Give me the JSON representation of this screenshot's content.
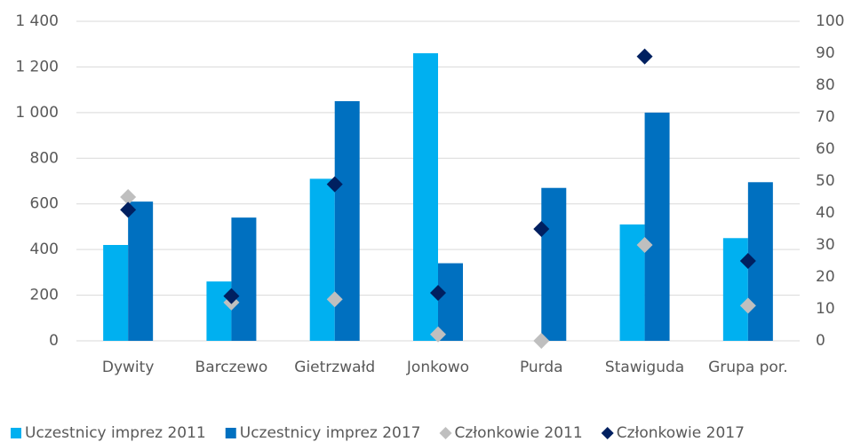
{
  "chart_data": {
    "type": "bar",
    "categories": [
      "Dywity",
      "Barczewo",
      "Gietrzwałd",
      "Jonkowo",
      "Purda",
      "Stawiguda",
      "Grupa por."
    ],
    "series": [
      {
        "name": "Uczestnicy imprez 2011",
        "color": "#00b0f0",
        "type": "bar",
        "values": [
          420,
          260,
          710,
          1260,
          0,
          510,
          450
        ]
      },
      {
        "name": "Uczestnicy imprez 2017",
        "color": "#0070c0",
        "type": "bar",
        "values": [
          610,
          540,
          1050,
          340,
          670,
          1000,
          695
        ]
      },
      {
        "name": "Członkowie 2011",
        "color": "#bfbfbf",
        "type": "scatter",
        "axis": "y2",
        "values": [
          45,
          12,
          13,
          2,
          0,
          30,
          11
        ]
      },
      {
        "name": "Członkowie 2017",
        "color": "#002060",
        "type": "scatter",
        "axis": "y2",
        "values": [
          41,
          14,
          49,
          15,
          35,
          89,
          25
        ]
      }
    ],
    "ylim": [
      0,
      1400
    ],
    "yticks": [
      0,
      200,
      400,
      600,
      800,
      {
        "value": 1000,
        "label": "1 000"
      },
      {
        "value": 1200,
        "label": "1 200"
      },
      {
        "value": 1400,
        "label": "1 400"
      }
    ],
    "y2lim": [
      0,
      100
    ],
    "y2ticks": [
      0,
      10,
      20,
      30,
      40,
      50,
      60,
      70,
      80,
      90,
      100
    ],
    "grid": true,
    "legend": "bottom"
  }
}
